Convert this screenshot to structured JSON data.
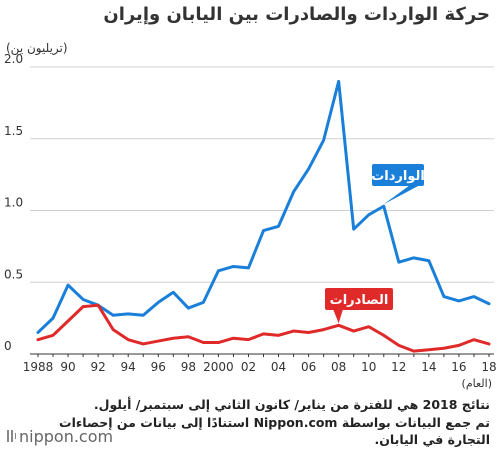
{
  "page": {
    "title": "حركة الواردات والصادرات بين اليابان وإيران",
    "unit": "(تريليون ين)",
    "xaxis_name": "(العام)",
    "notes": [
      "نتائج 2018 هي للفترة من يناير/ كانون الثاني إلى سبتمبر/ أيلول.",
      "تم جمع البيانات بواسطة Nippon.com استنادًا إلى بيانات من إحصاءات",
      "التجارة في اليابان."
    ],
    "logo": "nippon.com"
  },
  "chart_data": {
    "type": "line",
    "x": [
      1988,
      1989,
      1990,
      1991,
      1992,
      1993,
      1994,
      1995,
      1996,
      1997,
      1998,
      1999,
      2000,
      2001,
      2002,
      2003,
      2004,
      2005,
      2006,
      2007,
      2008,
      2009,
      2010,
      2011,
      2012,
      2013,
      2014,
      2015,
      2016,
      2017,
      2018
    ],
    "xtick_values": [
      1988,
      1990,
      1992,
      1994,
      1996,
      1998,
      2000,
      2002,
      2004,
      2006,
      2008,
      2010,
      2012,
      2014,
      2016,
      2018
    ],
    "xtick_labels": [
      "1988",
      "90",
      "92",
      "94",
      "96",
      "98",
      "2000",
      "02",
      "04",
      "06",
      "08",
      "10",
      "12",
      "14",
      "16",
      "18"
    ],
    "ylim": [
      0,
      2.0
    ],
    "yticks": [
      0,
      0.5,
      1.0,
      1.5,
      2.0
    ],
    "ytick_labels": [
      "0",
      "0.5",
      "1.0",
      "1.5",
      "2.0"
    ],
    "grid": true,
    "series": [
      {
        "name": "الواردات",
        "color": "#1a7fd9",
        "label_bg": "#1a7fd9",
        "values": [
          0.15,
          0.25,
          0.48,
          0.38,
          0.34,
          0.27,
          0.28,
          0.27,
          0.36,
          0.43,
          0.32,
          0.36,
          0.58,
          0.61,
          0.6,
          0.86,
          0.89,
          1.13,
          1.29,
          1.49,
          1.9,
          0.87,
          0.97,
          1.03,
          0.64,
          0.67,
          0.65,
          0.4,
          0.37,
          0.4,
          0.35
        ]
      },
      {
        "name": "الصادرات",
        "color": "#e02a2a",
        "label_bg": "#e02a2a",
        "values": [
          0.1,
          0.13,
          0.23,
          0.33,
          0.34,
          0.17,
          0.1,
          0.07,
          0.09,
          0.11,
          0.12,
          0.08,
          0.08,
          0.11,
          0.1,
          0.14,
          0.13,
          0.16,
          0.15,
          0.17,
          0.2,
          0.16,
          0.19,
          0.13,
          0.06,
          0.02,
          0.03,
          0.04,
          0.06,
          0.1,
          0.07
        ]
      }
    ]
  }
}
